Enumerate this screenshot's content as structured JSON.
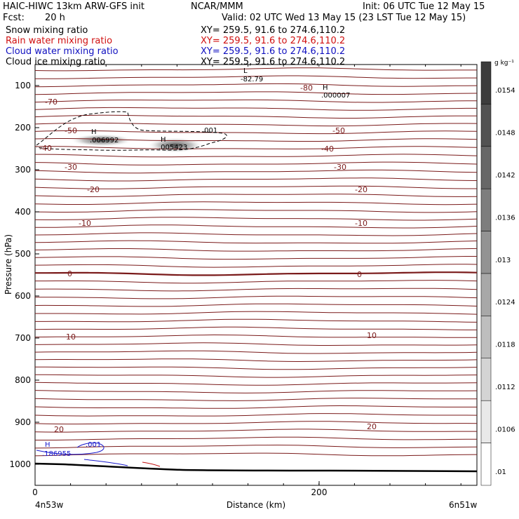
{
  "header": {
    "title_left": "HAIC-HIWC 13km ARW-GFS init",
    "org": "NCAR/MMM",
    "init": "Init: 06 UTC Tue 12 May 15",
    "fcst_label": "Fcst:",
    "fcst_value": "20 h",
    "valid": "Valid: 02 UTC Wed 13 May 15 (23 LST Tue 12 May 15)",
    "fields": [
      {
        "name": "Snow mixing ratio",
        "xy": "XY= 259.5, 91.6 to 274.6,110.2",
        "color": "#000000"
      },
      {
        "name": "Rain water mixing ratio",
        "xy": "XY= 259.5, 91.6 to 274.6,110.2",
        "color": "#d01010"
      },
      {
        "name": "Cloud water mixing ratio",
        "xy": "XY= 259.5, 91.6 to 274.6,110.2",
        "color": "#1010c0"
      },
      {
        "name": "Cloud ice mixing ratio",
        "xy": "XY= 259.5, 91.6 to 274.6,110.2",
        "color": "#000000"
      }
    ]
  },
  "chart_data": {
    "type": "heatmap",
    "xlabel": "Distance (km)",
    "ylabel": "Pressure (hPa)",
    "x_ticks": [
      "0",
      "200"
    ],
    "y_ticks": [
      "100",
      "200",
      "300",
      "400",
      "500",
      "600",
      "700",
      "800",
      "900",
      "1000"
    ],
    "x_endpoints": {
      "left": "4n53w",
      "right": "6n51w"
    },
    "ylim": [
      1050,
      50
    ],
    "colorbar": {
      "units": "g kg⁻¹",
      "labels": [
        ".0154",
        ".0148",
        ".0142",
        ".0136",
        ".013",
        ".0124",
        ".0118",
        ".0112",
        ".0106",
        ".01"
      ]
    },
    "temperature_contour_labels": [
      "-70",
      "-80",
      "-50",
      "-50",
      "-40",
      "-40",
      "-30",
      "-30",
      "-20",
      "-20",
      "-10",
      "-10",
      "0",
      "0",
      "10",
      "10",
      "20",
      "20"
    ],
    "extrema": [
      {
        "type": "L",
        "value": "-82.79"
      },
      {
        "type": "H",
        "value": ".000007"
      },
      {
        "type": "H",
        "value": ".006992"
      },
      {
        "type": "H",
        "value": ".005423"
      },
      {
        "type": "H",
        "value": ".186955"
      }
    ],
    "contour_value_labels": [
      ".001",
      ".001"
    ],
    "colors": {
      "isotherm": "#7a1a1a",
      "cloud_water": "#1a1acc",
      "terrain": "#000000"
    }
  }
}
